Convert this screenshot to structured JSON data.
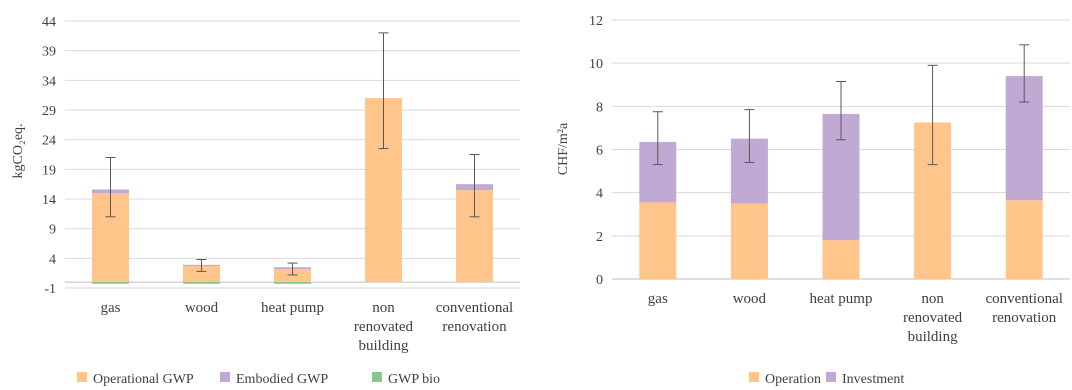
{
  "chart_data": [
    {
      "type": "bar",
      "stacked": true,
      "categories": [
        [
          "gas"
        ],
        [
          "wood"
        ],
        [
          "heat pump"
        ],
        [
          "non",
          "renovated",
          "building"
        ],
        [
          "conventional",
          "renovation"
        ]
      ],
      "ylabel": "kgCO₂eq.",
      "ylim": [
        -1,
        44
      ],
      "yticks": [
        -1,
        4,
        9,
        14,
        19,
        24,
        29,
        34,
        39,
        44
      ],
      "series": [
        {
          "name": "Operational GWP",
          "color": "#FFC58A",
          "values": [
            15.0,
            2.7,
            2.2,
            31.0,
            15.5
          ]
        },
        {
          "name": "Embodied GWP",
          "color": "#C0A9D2",
          "values": [
            0.6,
            0.2,
            0.3,
            0.0,
            1.0
          ]
        },
        {
          "name": "GWP bio",
          "color": "#8CC68C",
          "values": [
            -0.3,
            -0.3,
            -0.3,
            0.0,
            0.0
          ]
        }
      ],
      "error_bars": {
        "center": [
          15.6,
          2.9,
          2.5,
          31.0,
          16.5
        ],
        "low": [
          11.0,
          1.8,
          1.2,
          22.5,
          11.0
        ],
        "high": [
          21.0,
          3.8,
          3.2,
          42.0,
          21.5
        ]
      },
      "legend_position": "bottom"
    },
    {
      "type": "bar",
      "stacked": true,
      "categories": [
        [
          "gas"
        ],
        [
          "wood"
        ],
        [
          "heat pump"
        ],
        [
          "non",
          "renovated",
          "building"
        ],
        [
          "conventional",
          "renovation"
        ]
      ],
      "ylabel": "CHF/m²a",
      "ylim": [
        0,
        12
      ],
      "yticks": [
        0,
        2,
        4,
        6,
        8,
        10,
        12
      ],
      "series": [
        {
          "name": "Operation",
          "color": "#FFC58A",
          "values": [
            3.55,
            3.5,
            1.8,
            7.25,
            3.65
          ]
        },
        {
          "name": "Investment",
          "color": "#C0A9D2",
          "values": [
            2.8,
            3.0,
            5.85,
            0.0,
            5.75
          ]
        }
      ],
      "error_bars": {
        "center": [
          6.35,
          6.5,
          7.65,
          7.25,
          9.4
        ],
        "low": [
          5.3,
          5.4,
          6.45,
          5.3,
          8.2
        ],
        "high": [
          7.75,
          7.85,
          9.15,
          9.9,
          10.85
        ]
      },
      "legend_position": "bottom"
    }
  ]
}
